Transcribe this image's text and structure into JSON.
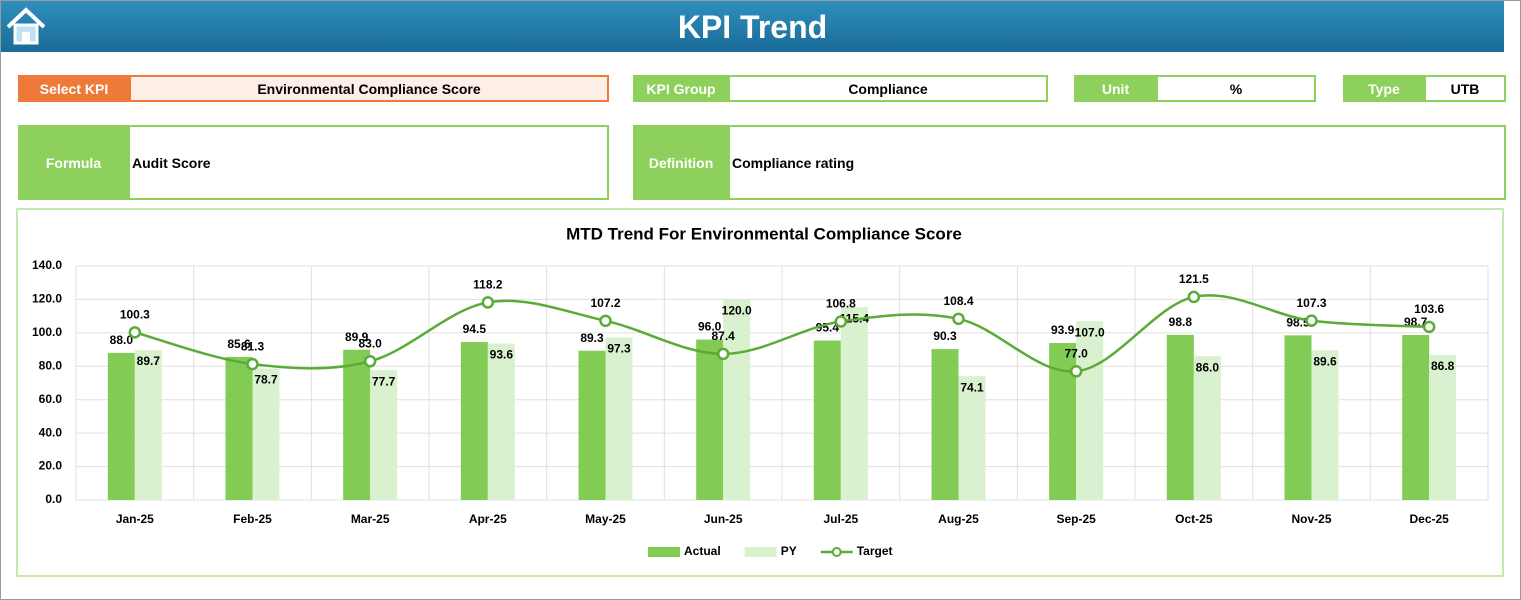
{
  "header": {
    "title": "KPI Trend"
  },
  "fields": [
    {
      "label": "Select KPI",
      "value": "Environmental Compliance Score"
    },
    {
      "label": "KPI Group",
      "value": "Compliance"
    },
    {
      "label": "Unit",
      "value": "%"
    },
    {
      "label": "Type",
      "value": "UTB"
    },
    {
      "label": "Formula",
      "value": "Audit Score"
    },
    {
      "label": "Definition",
      "value": "Compliance rating"
    }
  ],
  "chart_data": {
    "type": "bar",
    "title": "MTD Trend For Environmental Compliance Score",
    "categories": [
      "Jan-25",
      "Feb-25",
      "Mar-25",
      "Apr-25",
      "May-25",
      "Jun-25",
      "Jul-25",
      "Aug-25",
      "Sep-25",
      "Oct-25",
      "Nov-25",
      "Dec-25"
    ],
    "series": [
      {
        "name": "Actual",
        "color": "#82cc55",
        "values": [
          88.0,
          85.6,
          89.9,
          94.5,
          89.3,
          96.0,
          95.4,
          90.3,
          93.9,
          98.8,
          98.5,
          98.7
        ],
        "value_labels": [
          "88.0",
          "85.6",
          "89.9",
          "94.5",
          "89.3",
          "96.0",
          "95.4",
          "90.3",
          "93.9",
          "98.8",
          "98.5",
          "98.7"
        ]
      },
      {
        "name": "PY",
        "color": "#daf1d0",
        "values": [
          89.7,
          78.7,
          77.7,
          93.6,
          97.3,
          120.0,
          115.4,
          74.1,
          107.0,
          86.0,
          89.6,
          86.8
        ],
        "value_labels": [
          "89.7",
          "78.7",
          "77.7",
          "93.6",
          "97.3",
          "120.0",
          "115.4",
          "74.1",
          "107.0",
          "86.0",
          "89.6",
          "86.8"
        ]
      },
      {
        "name": "Target",
        "color": "#5aab37",
        "type": "line",
        "smooth": true,
        "values": [
          100.3,
          81.3,
          83.0,
          118.2,
          107.2,
          87.4,
          106.8,
          108.4,
          77.0,
          121.5,
          107.3,
          103.6
        ],
        "value_labels": [
          "100.3",
          "81.3",
          "83.0",
          "118.2",
          "107.2",
          "87.4",
          "106.8",
          "108.4",
          "77.0",
          "121.5",
          "107.3",
          "103.6"
        ]
      }
    ],
    "ylim": [
      0,
      140
    ],
    "yticks": [
      {
        "value": 0,
        "label": "0.0"
      },
      {
        "value": 20,
        "label": "20.0"
      },
      {
        "value": 40,
        "label": "40.0"
      },
      {
        "value": 60,
        "label": "60.0"
      },
      {
        "value": 80,
        "label": "80.0"
      },
      {
        "value": 100,
        "label": "100.0"
      },
      {
        "value": 120,
        "label": "120.0"
      },
      {
        "value": 140,
        "label": "140.0"
      }
    ],
    "grid": true,
    "legend": "bottom"
  }
}
